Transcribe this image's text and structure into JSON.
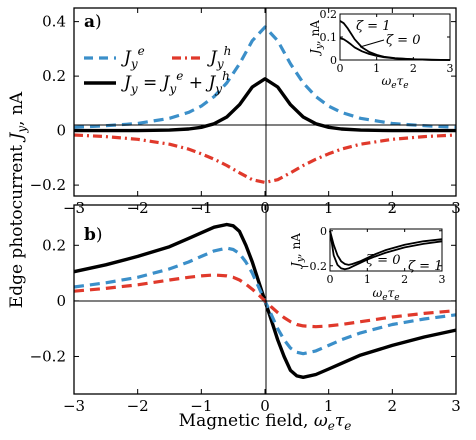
{
  "chart_data": {
    "type": "line",
    "xlabel": "Magnetic field, ωeτe",
    "ylabel": "Edge photocurrent Jy, nA",
    "panels": [
      {
        "id": "a",
        "panel_label": "a)",
        "xlim": [
          -3,
          3
        ],
        "ylim": [
          -0.24,
          0.45
        ],
        "xticks": [
          -3,
          -2,
          -1,
          0,
          1,
          2,
          3
        ],
        "yticks": [
          -0.2,
          0,
          0.2,
          0.4
        ],
        "ytick_labels": [
          "-0.2",
          "0",
          "0.2",
          "0.4"
        ],
        "legend": {
          "placement": "top-left",
          "entries": [
            {
              "series": 0,
              "label": "Jye"
            },
            {
              "series": 1,
              "label": "Jyh"
            },
            {
              "series": 2,
              "label": "Jy = Jye + Jyh"
            }
          ]
        },
        "series": [
          {
            "color": "#3b8fc9",
            "dash": "dash",
            "width": 3.2,
            "x": [
              -3,
              -2.5,
              -2,
              -1.5,
              -1.2,
              -1,
              -0.8,
              -0.6,
              -0.4,
              -0.2,
              0,
              0.2,
              0.4,
              0.6,
              0.8,
              1,
              1.2,
              1.5,
              2,
              2.5,
              3
            ],
            "y": [
              0.012,
              0.018,
              0.026,
              0.045,
              0.067,
              0.09,
              0.125,
              0.175,
              0.245,
              0.33,
              0.38,
              0.33,
              0.245,
              0.175,
              0.125,
              0.09,
              0.067,
              0.045,
              0.026,
              0.018,
              0.012
            ]
          },
          {
            "color": "#e0392b",
            "dash": "dashdot",
            "width": 3.2,
            "x": [
              -3,
              -2.5,
              -2,
              -1.5,
              -1.2,
              -1,
              -0.8,
              -0.6,
              -0.4,
              -0.2,
              0,
              0.2,
              0.4,
              0.6,
              0.8,
              1,
              1.2,
              1.5,
              2,
              2.5,
              3
            ],
            "y": [
              -0.016,
              -0.022,
              -0.032,
              -0.05,
              -0.068,
              -0.085,
              -0.105,
              -0.128,
              -0.155,
              -0.18,
              -0.19,
              -0.18,
              -0.155,
              -0.128,
              -0.105,
              -0.085,
              -0.068,
              -0.05,
              -0.032,
              -0.022,
              -0.016
            ]
          },
          {
            "color": "#000000",
            "dash": "solid",
            "width": 3.4,
            "x": [
              -3,
              -2.5,
              -2,
              -1.5,
              -1.2,
              -1,
              -0.8,
              -0.6,
              -0.4,
              -0.2,
              0,
              0.2,
              0.4,
              0.6,
              0.8,
              1,
              1.2,
              1.5,
              2,
              2.5,
              3
            ],
            "y": [
              0.0,
              0.0,
              0.0,
              0.002,
              0.006,
              0.012,
              0.025,
              0.05,
              0.095,
              0.16,
              0.19,
              0.16,
              0.095,
              0.05,
              0.025,
              0.012,
              0.006,
              0.002,
              0.0,
              0.0,
              0.0
            ]
          }
        ],
        "inset": {
          "xlabel": "ωeτe",
          "ylabel": "Jy, nA",
          "xlim": [
            0,
            3
          ],
          "ylim": [
            0,
            0.2
          ],
          "xticks": [
            0,
            1,
            2,
            3
          ],
          "yticks": [
            0,
            0.1,
            0.2
          ],
          "ytick_labels": [
            "0",
            "0.1",
            "0.2"
          ],
          "series": [
            {
              "name": "ζ = 1",
              "color": "#000000",
              "dash": "solid",
              "width": 1.8,
              "x": [
                0,
                0.1,
                0.2,
                0.3,
                0.4,
                0.6,
                0.8,
                1,
                1.2,
                1.5,
                2,
                2.5,
                3
              ],
              "y": [
                0.17,
                0.16,
                0.14,
                0.115,
                0.09,
                0.055,
                0.035,
                0.022,
                0.014,
                0.008,
                0.003,
                0.001,
                0.0
              ]
            },
            {
              "name": "ζ = 0",
              "color": "#000000",
              "dash": "solid",
              "width": 1.8,
              "x": [
                0,
                0.1,
                0.2,
                0.3,
                0.4,
                0.6,
                0.8,
                1,
                1.2,
                1.5,
                2,
                2.5,
                3
              ],
              "y": [
                0.095,
                0.09,
                0.08,
                0.068,
                0.055,
                0.038,
                0.026,
                0.018,
                0.012,
                0.007,
                0.003,
                0.001,
                0.0
              ]
            }
          ]
        }
      },
      {
        "id": "b",
        "panel_label": "b)",
        "xlim": [
          -3,
          3
        ],
        "ylim": [
          -0.335,
          0.345
        ],
        "xticks": [
          -3,
          -2,
          -1,
          0,
          1,
          2,
          3
        ],
        "yticks": [
          -0.2,
          0,
          0.2
        ],
        "ytick_labels": [
          "-0.2",
          "0",
          "0.2"
        ],
        "series": [
          {
            "color": "#000000",
            "dash": "solid",
            "width": 3.4,
            "x": [
              -3,
              -2.5,
              -2,
              -1.5,
              -1.2,
              -1,
              -0.8,
              -0.6,
              -0.5,
              -0.4,
              -0.3,
              -0.2,
              -0.1,
              0,
              0.1,
              0.2,
              0.3,
              0.4,
              0.5,
              0.6,
              0.8,
              1,
              1.2,
              1.5,
              2,
              2.5,
              3
            ],
            "y": [
              0.105,
              0.13,
              0.16,
              0.195,
              0.225,
              0.245,
              0.265,
              0.275,
              0.27,
              0.25,
              0.2,
              0.14,
              0.07,
              0,
              -0.07,
              -0.14,
              -0.2,
              -0.25,
              -0.27,
              -0.275,
              -0.265,
              -0.245,
              -0.225,
              -0.195,
              -0.16,
              -0.13,
              -0.105
            ]
          },
          {
            "color": "#3b8fc9",
            "dash": "dash",
            "width": 3.2,
            "x": [
              -3,
              -2.5,
              -2,
              -1.5,
              -1.2,
              -1,
              -0.8,
              -0.6,
              -0.5,
              -0.4,
              -0.3,
              -0.2,
              -0.1,
              0,
              0.1,
              0.2,
              0.3,
              0.4,
              0.5,
              0.6,
              0.8,
              1,
              1.2,
              1.5,
              2,
              2.5,
              3
            ],
            "y": [
              0.05,
              0.065,
              0.085,
              0.115,
              0.14,
              0.16,
              0.18,
              0.19,
              0.185,
              0.17,
              0.14,
              0.1,
              0.05,
              0,
              -0.05,
              -0.1,
              -0.14,
              -0.17,
              -0.185,
              -0.19,
              -0.18,
              -0.16,
              -0.14,
              -0.115,
              -0.085,
              -0.065,
              -0.05
            ]
          },
          {
            "color": "#e0392b",
            "dash": "dash",
            "width": 3.2,
            "x": [
              -3,
              -2.5,
              -2,
              -1.5,
              -1.2,
              -1,
              -0.8,
              -0.6,
              -0.5,
              -0.4,
              -0.3,
              -0.2,
              -0.1,
              0,
              0.1,
              0.2,
              0.3,
              0.4,
              0.5,
              0.6,
              0.8,
              1,
              1.2,
              1.5,
              2,
              2.5,
              3
            ],
            "y": [
              0.035,
              0.045,
              0.058,
              0.075,
              0.085,
              0.09,
              0.093,
              0.09,
              0.085,
              0.075,
              0.06,
              0.042,
              0.022,
              0,
              -0.022,
              -0.042,
              -0.06,
              -0.075,
              -0.085,
              -0.09,
              -0.093,
              -0.09,
              -0.085,
              -0.075,
              -0.058,
              -0.045,
              -0.035
            ]
          }
        ],
        "inset": {
          "xlabel": "ωeτe",
          "ylabel": "Jy, nA",
          "xlim": [
            0,
            3
          ],
          "ylim": [
            -0.23,
            0.01
          ],
          "xticks": [
            0,
            1,
            2,
            3
          ],
          "yticks": [
            0,
            -0.2
          ],
          "ytick_labels": [
            "0",
            "-0.2"
          ],
          "series": [
            {
              "name": "ζ = 0",
              "color": "#000000",
              "dash": "solid",
              "width": 1.8,
              "x": [
                0,
                0.1,
                0.2,
                0.3,
                0.4,
                0.5,
                0.6,
                0.8,
                1,
                1.2,
                1.5,
                2,
                2.5,
                3
              ],
              "y": [
                0,
                -0.08,
                -0.14,
                -0.175,
                -0.19,
                -0.195,
                -0.19,
                -0.175,
                -0.155,
                -0.135,
                -0.11,
                -0.08,
                -0.06,
                -0.048
              ]
            },
            {
              "name": "ζ = 1",
              "color": "#000000",
              "dash": "solid",
              "width": 1.8,
              "x": [
                0,
                0.1,
                0.2,
                0.3,
                0.4,
                0.5,
                0.6,
                0.8,
                1,
                1.2,
                1.5,
                2,
                2.5,
                3
              ],
              "y": [
                0,
                -0.14,
                -0.195,
                -0.215,
                -0.22,
                -0.215,
                -0.205,
                -0.185,
                -0.165,
                -0.148,
                -0.125,
                -0.095,
                -0.075,
                -0.06
              ]
            }
          ]
        }
      }
    ]
  }
}
